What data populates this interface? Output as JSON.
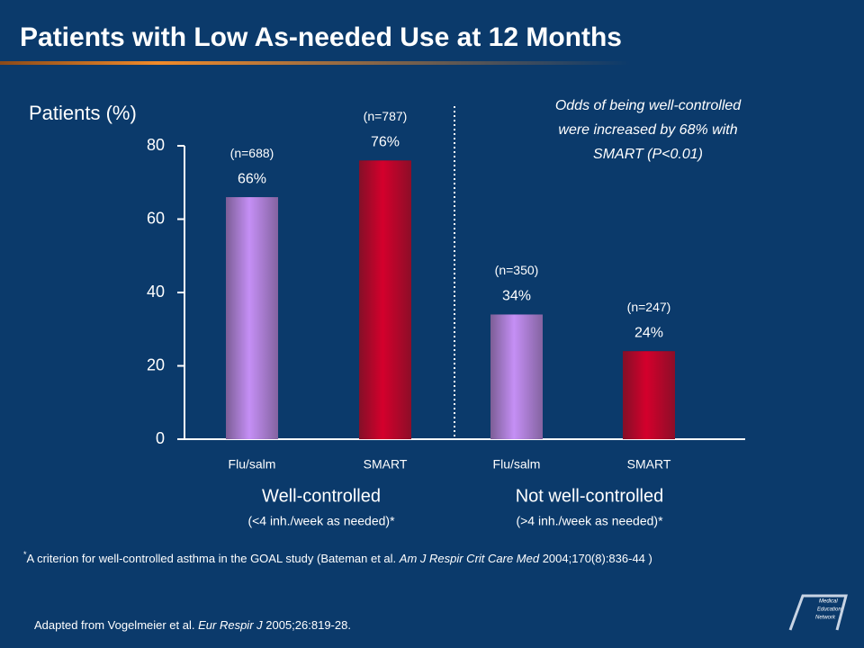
{
  "chart_data": {
    "type": "bar",
    "title": "Patients with Low As-needed Use at 12 Months",
    "y_label": "Patients (%)",
    "categories": [
      "Flu/salm",
      "SMART",
      "Flu/salm",
      "SMART"
    ],
    "values": [
      66,
      76,
      34,
      24
    ],
    "value_labels": [
      "66%",
      "76%",
      "34%",
      "24%"
    ],
    "n_labels": [
      "(n=688)",
      "(n=787)",
      "(n=350)",
      "(n=247)"
    ],
    "colors": [
      "#c58ff5",
      "#d4002c",
      "#c58ff5",
      "#d4002c"
    ],
    "ylim": [
      0,
      80
    ],
    "yticks": [
      0,
      20,
      40,
      60,
      80
    ],
    "groups": [
      {
        "name": "Well-controlled",
        "detail": "(<4 inh./week as needed)*"
      },
      {
        "name": "Not well-controlled",
        "detail": "(>4 inh./week as needed)*"
      }
    ],
    "annotation": [
      "Odds of being well-controlled",
      "were increased by 68% with",
      "SMART (P<0.01)"
    ],
    "footnote": [
      "*",
      "A criterion for well-controlled asthma in the GOAL study (Bateman et al. ",
      "Am J Respir Crit Care Med",
      " 2004;170(8):836-44 )"
    ],
    "source": [
      "Adapted from Vogelmeier et al. ",
      "Eur Respir J",
      "  2005;26:819-28."
    ],
    "logo": [
      "Medical",
      "Education",
      "Network"
    ]
  }
}
